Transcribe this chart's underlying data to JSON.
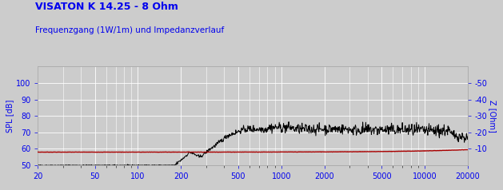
{
  "title": "VISATON K 14.25 - 8 Ohm",
  "subtitle": "Frequenzgang (1W/1m) und Impedanzverlauf",
  "ylabel_left": "SPL [dB]",
  "ylabel_right": "Z [Ohm]",
  "ylim_left": [
    50,
    110
  ],
  "ylim_right": [
    0,
    60
  ],
  "yticks_left": [
    50,
    60,
    70,
    80,
    90,
    100
  ],
  "yticks_right_vals": [
    10,
    20,
    30,
    40,
    50
  ],
  "yticks_right_labels": [
    "-10",
    "-20",
    "-30",
    "-40",
    "-50"
  ],
  "xlim": [
    20,
    20000
  ],
  "xticks": [
    20,
    50,
    100,
    200,
    500,
    1000,
    2000,
    5000,
    10000,
    20000
  ],
  "xtick_labels": [
    "20",
    "50",
    "100",
    "200",
    "500",
    "1000",
    "2000",
    "5000",
    "10000",
    "20000"
  ],
  "bg_color": "#cccccc",
  "grid_color": "#ffffff",
  "title_color": "#0000ee",
  "subtitle_color": "#0000ee",
  "axis_label_color": "#0000ee",
  "tick_color": "#0000ee",
  "spl_color": "#000000",
  "imp_color": "#aa0000",
  "title_fontsize": 9,
  "subtitle_fontsize": 7.5,
  "tick_fontsize": 7
}
